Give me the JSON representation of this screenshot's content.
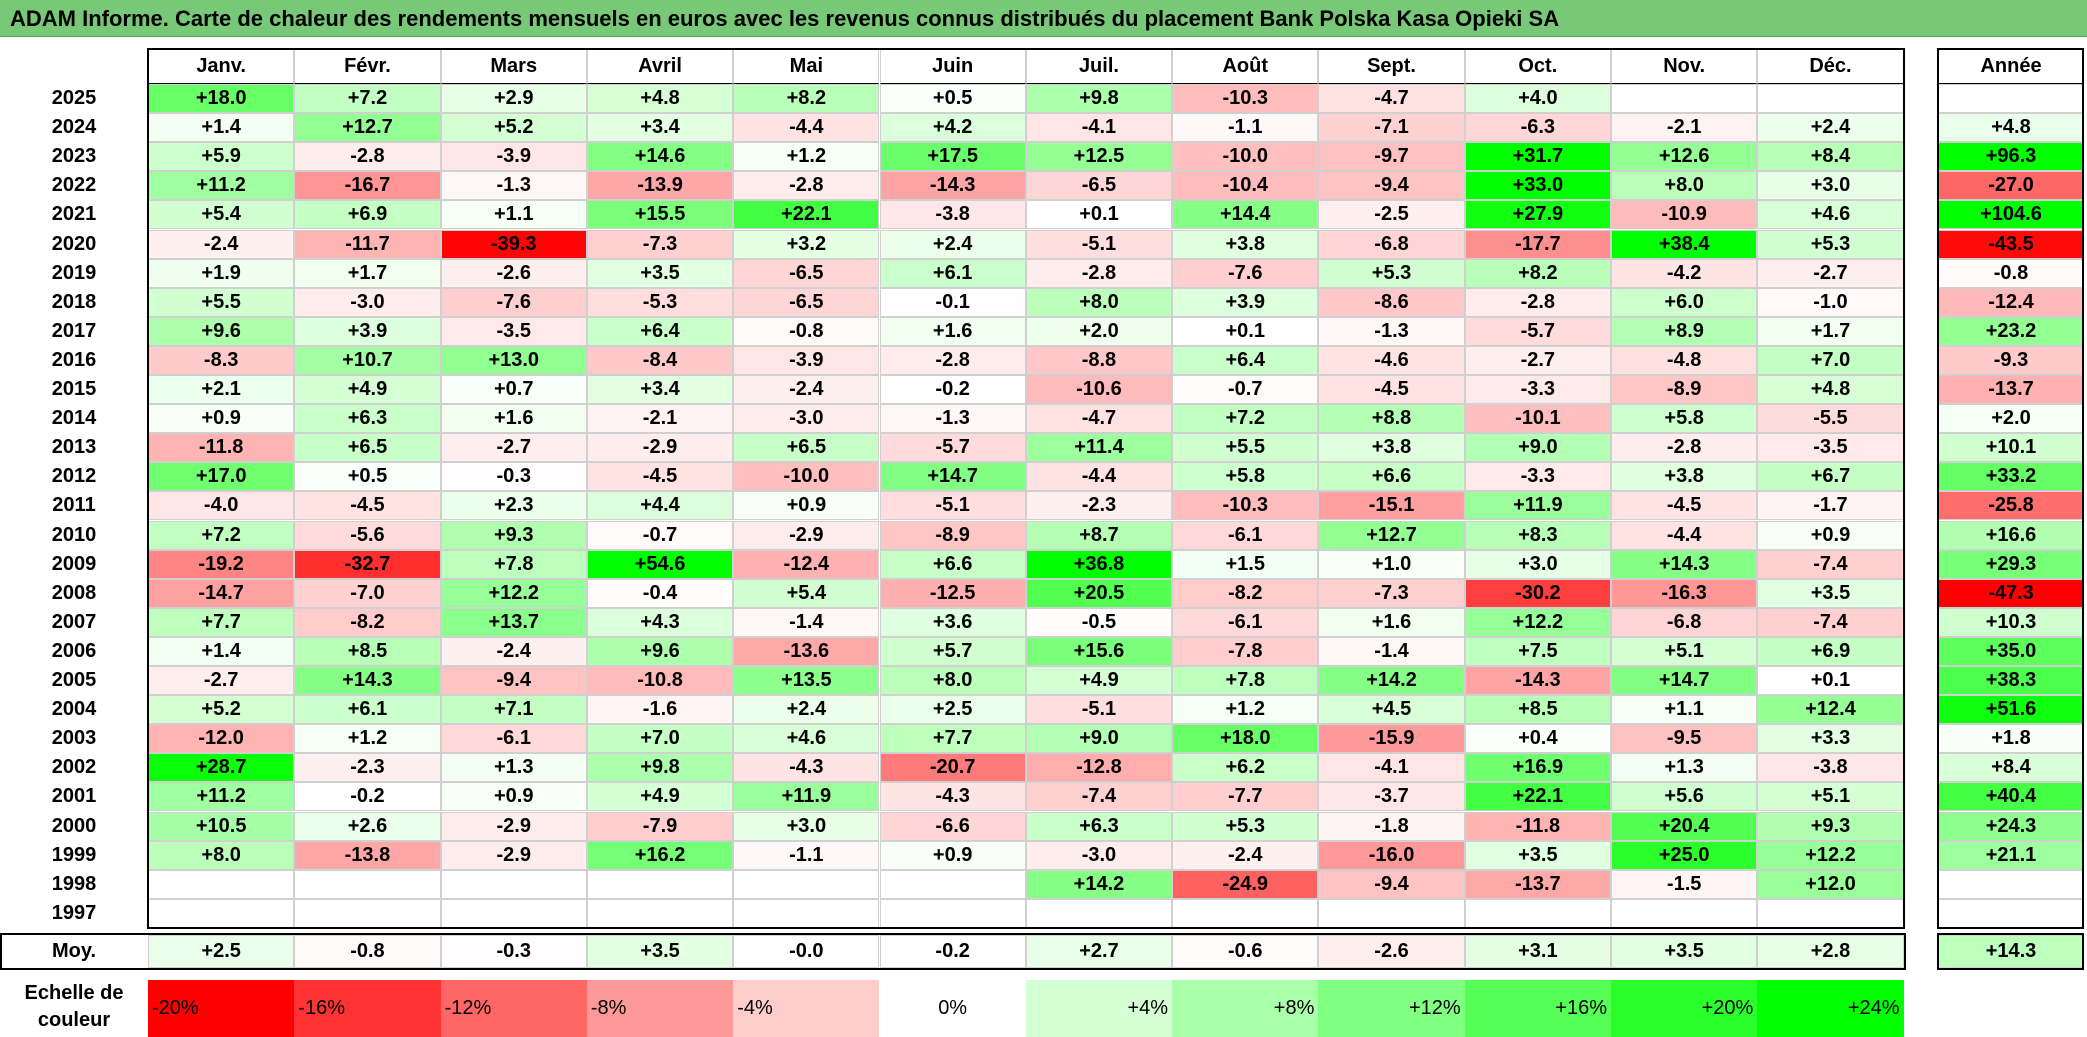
{
  "title": "ADAM Informe. Carte de chaleur des rendements mensuels en euros avec les revenus connus distribués du placement Bank Polska Kasa Opieki SA",
  "chart_data": {
    "type": "heatmap",
    "title": "ADAM Informe. Carte de chaleur des rendements mensuels en euros avec les revenus connus distribués du placement Bank Polska Kasa Opieki SA",
    "months": [
      "Janv.",
      "Févr.",
      "Mars",
      "Avril",
      "Mai",
      "Juin",
      "Juil.",
      "Août",
      "Sept.",
      "Oct.",
      "Nov.",
      "Déc."
    ],
    "year_header": "Année",
    "rows": [
      {
        "year": "2025",
        "values": [
          18.0,
          7.2,
          2.9,
          4.8,
          8.2,
          0.5,
          9.8,
          -10.3,
          -4.7,
          4.0,
          null,
          null
        ],
        "annual": null
      },
      {
        "year": "2024",
        "values": [
          1.4,
          12.7,
          5.2,
          3.4,
          -4.4,
          4.2,
          -4.1,
          -1.1,
          -7.1,
          -6.3,
          -2.1,
          2.4
        ],
        "annual": 4.8
      },
      {
        "year": "2023",
        "values": [
          5.9,
          -2.8,
          -3.9,
          14.6,
          1.2,
          17.5,
          12.5,
          -10.0,
          -9.7,
          31.7,
          12.6,
          8.4
        ],
        "annual": 96.3
      },
      {
        "year": "2022",
        "values": [
          11.2,
          -16.7,
          -1.3,
          -13.9,
          -2.8,
          -14.3,
          -6.5,
          -10.4,
          -9.4,
          33.0,
          8.0,
          3.0
        ],
        "annual": -27.0
      },
      {
        "year": "2021",
        "values": [
          5.4,
          6.9,
          1.1,
          15.5,
          22.1,
          -3.8,
          0.1,
          14.4,
          -2.5,
          27.9,
          -10.9,
          4.6
        ],
        "annual": 104.6
      },
      {
        "year": "2020",
        "values": [
          -2.4,
          -11.7,
          -39.3,
          -7.3,
          3.2,
          2.4,
          -5.1,
          3.8,
          -6.8,
          -17.7,
          38.4,
          5.3
        ],
        "annual": -43.5
      },
      {
        "year": "2019",
        "values": [
          1.9,
          1.7,
          -2.6,
          3.5,
          -6.5,
          6.1,
          -2.8,
          -7.6,
          5.3,
          8.2,
          -4.2,
          -2.7
        ],
        "annual": -0.8
      },
      {
        "year": "2018",
        "values": [
          5.5,
          -3.0,
          -7.6,
          -5.3,
          -6.5,
          -0.1,
          8.0,
          3.9,
          -8.6,
          -2.8,
          6.0,
          -1.0
        ],
        "annual": -12.4
      },
      {
        "year": "2017",
        "values": [
          9.6,
          3.9,
          -3.5,
          6.4,
          -0.8,
          1.6,
          2.0,
          0.1,
          -1.3,
          -5.7,
          8.9,
          1.7
        ],
        "annual": 23.2
      },
      {
        "year": "2016",
        "values": [
          -8.3,
          10.7,
          13.0,
          -8.4,
          -3.9,
          -2.8,
          -8.8,
          6.4,
          -4.6,
          -2.7,
          -4.8,
          7.0
        ],
        "annual": -9.3
      },
      {
        "year": "2015",
        "values": [
          2.1,
          4.9,
          0.7,
          3.4,
          -2.4,
          -0.2,
          -10.6,
          -0.7,
          -4.5,
          -3.3,
          -8.9,
          4.8
        ],
        "annual": -13.7
      },
      {
        "year": "2014",
        "values": [
          0.9,
          6.3,
          1.6,
          -2.1,
          -3.0,
          -1.3,
          -4.7,
          7.2,
          8.8,
          -10.1,
          5.8,
          -5.5
        ],
        "annual": 2.0
      },
      {
        "year": "2013",
        "values": [
          -11.8,
          6.5,
          -2.7,
          -2.9,
          6.5,
          -5.7,
          11.4,
          5.5,
          3.8,
          9.0,
          -2.8,
          -3.5
        ],
        "annual": 10.1
      },
      {
        "year": "2012",
        "values": [
          17.0,
          0.5,
          -0.3,
          -4.5,
          -10.0,
          14.7,
          -4.4,
          5.8,
          6.6,
          -3.3,
          3.8,
          6.7
        ],
        "annual": 33.2
      },
      {
        "year": "2011",
        "values": [
          -4.0,
          -4.5,
          2.3,
          4.4,
          0.9,
          -5.1,
          -2.3,
          -10.3,
          -15.1,
          11.9,
          -4.5,
          -1.7
        ],
        "annual": -25.8
      },
      {
        "year": "2010",
        "values": [
          7.2,
          -5.6,
          9.3,
          -0.7,
          -2.9,
          -8.9,
          8.7,
          -6.1,
          12.7,
          8.3,
          -4.4,
          0.9
        ],
        "annual": 16.6
      },
      {
        "year": "2009",
        "values": [
          -19.2,
          -32.7,
          7.8,
          54.6,
          -12.4,
          6.6,
          36.8,
          1.5,
          1.0,
          3.0,
          14.3,
          -7.4
        ],
        "annual": 29.3
      },
      {
        "year": "2008",
        "values": [
          -14.7,
          -7.0,
          12.2,
          -0.4,
          5.4,
          -12.5,
          20.5,
          -8.2,
          -7.3,
          -30.2,
          -16.3,
          3.5
        ],
        "annual": -47.3
      },
      {
        "year": "2007",
        "values": [
          7.7,
          -8.2,
          13.7,
          4.3,
          -1.4,
          3.6,
          -0.5,
          -6.1,
          1.6,
          12.2,
          -6.8,
          -7.4
        ],
        "annual": 10.3
      },
      {
        "year": "2006",
        "values": [
          1.4,
          8.5,
          -2.4,
          9.6,
          -13.6,
          5.7,
          15.6,
          -7.8,
          -1.4,
          7.5,
          5.1,
          6.9
        ],
        "annual": 35.0
      },
      {
        "year": "2005",
        "values": [
          -2.7,
          14.3,
          -9.4,
          -10.8,
          13.5,
          8.0,
          4.9,
          7.8,
          14.2,
          -14.3,
          14.7,
          0.1
        ],
        "annual": 38.3
      },
      {
        "year": "2004",
        "values": [
          5.2,
          6.1,
          7.1,
          -1.6,
          2.4,
          2.5,
          -5.1,
          1.2,
          4.5,
          8.5,
          1.1,
          12.4
        ],
        "annual": 51.6
      },
      {
        "year": "2003",
        "values": [
          -12.0,
          1.2,
          -6.1,
          7.0,
          4.6,
          7.7,
          9.0,
          18.0,
          -15.9,
          0.4,
          -9.5,
          3.3
        ],
        "annual": 1.8
      },
      {
        "year": "2002",
        "values": [
          28.7,
          -2.3,
          1.3,
          9.8,
          -4.3,
          -20.7,
          -12.8,
          6.2,
          -4.1,
          16.9,
          1.3,
          -3.8
        ],
        "annual": 8.4
      },
      {
        "year": "2001",
        "values": [
          11.2,
          -0.2,
          0.9,
          4.9,
          11.9,
          -4.3,
          -7.4,
          -7.7,
          -3.7,
          22.1,
          5.6,
          5.1
        ],
        "annual": 40.4
      },
      {
        "year": "2000",
        "values": [
          10.5,
          2.6,
          -2.9,
          -7.9,
          3.0,
          -6.6,
          6.3,
          5.3,
          -1.8,
          -11.8,
          20.4,
          9.3
        ],
        "annual": 24.3
      },
      {
        "year": "1999",
        "values": [
          8.0,
          -13.8,
          -2.9,
          16.2,
          -1.1,
          0.9,
          -3.0,
          -2.4,
          -16.0,
          3.5,
          25.0,
          12.2
        ],
        "annual": 21.1
      },
      {
        "year": "1998",
        "values": [
          null,
          null,
          null,
          null,
          null,
          null,
          14.2,
          -24.9,
          -9.4,
          -13.7,
          -1.5,
          12.0
        ],
        "annual": null
      },
      {
        "year": "1997",
        "values": [
          null,
          null,
          null,
          null,
          null,
          null,
          null,
          null,
          null,
          null,
          null,
          null
        ],
        "annual": null
      }
    ],
    "average": {
      "label": "Moy.",
      "values": [
        2.5,
        -0.8,
        -0.3,
        3.5,
        -0.0,
        -0.2,
        2.7,
        -0.6,
        -2.6,
        3.1,
        3.5,
        2.8
      ],
      "annual": 14.3
    },
    "scale": {
      "label_line1": "Echelle de",
      "label_line2": "couleur",
      "steps": [
        {
          "label": "-20%",
          "value": -20
        },
        {
          "label": "-16%",
          "value": -16
        },
        {
          "label": "-12%",
          "value": -12
        },
        {
          "label": "-8%",
          "value": -8
        },
        {
          "label": "-4%",
          "value": -4
        },
        {
          "label": "0%",
          "value": 0
        },
        {
          "label": "+4%",
          "value": 4
        },
        {
          "label": "+8%",
          "value": 8
        },
        {
          "label": "+12%",
          "value": 12
        },
        {
          "label": "+16%",
          "value": 16
        },
        {
          "label": "+20%",
          "value": 20
        },
        {
          "label": "+24%",
          "value": 24
        }
      ]
    },
    "colors": {
      "negative_max": "#ff0000",
      "neutral": "#ffffff",
      "positive_max": "#00ff00",
      "title_bg": "#77c877"
    }
  }
}
